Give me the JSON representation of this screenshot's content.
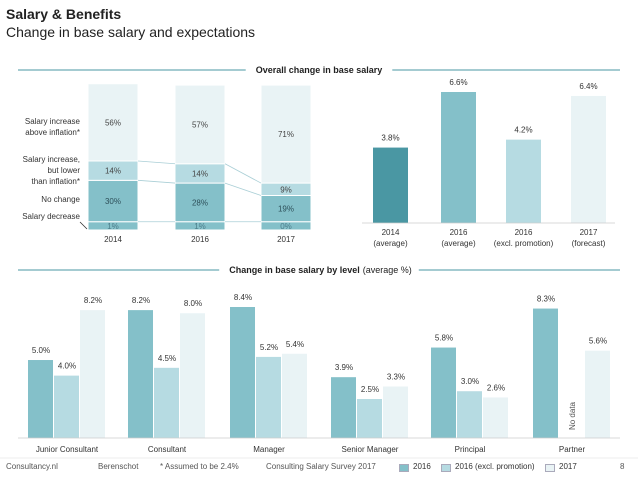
{
  "header": {
    "title": "Salary & Benefits",
    "subtitle": "Change in base salary and expectations"
  },
  "footer": {
    "source": "Consultancy.nl",
    "partner": "Berenschot",
    "note": "* Assumed to be 2.4%",
    "survey": "Consulting Salary Survey 2017",
    "page": "8"
  },
  "legend": [
    {
      "name": "2016",
      "color": "#84c0c9"
    },
    {
      "name": "2016 (excl. promotion)",
      "color": "#b6dbe2"
    },
    {
      "name": "2017",
      "color": "#e9f3f5"
    }
  ],
  "chart_data": [
    {
      "type": "bar",
      "stacked": true,
      "title": "Overall change in base salary",
      "categories": [
        "2014",
        "2016",
        "2017"
      ],
      "series": [
        {
          "name": "Salary decrease",
          "values": [
            1,
            1,
            0
          ],
          "labels": [
            "1%",
            "1%",
            "0%"
          ],
          "color": "#84c0c9"
        },
        {
          "name": "No change",
          "values": [
            30,
            28,
            19
          ],
          "labels": [
            "30%",
            "28%",
            "19%"
          ],
          "color": "#84c0c9"
        },
        {
          "name": "Salary increase, but lower than inflation*",
          "values": [
            14,
            14,
            9
          ],
          "labels": [
            "14%",
            "14%",
            "9%"
          ],
          "color": "#b6dbe2"
        },
        {
          "name": "Salary increase above inflation*",
          "values": [
            56,
            57,
            71
          ],
          "labels": [
            "56%",
            "57%",
            "71%"
          ],
          "color": "#e9f3f5"
        }
      ]
    },
    {
      "type": "bar",
      "categories": [
        "2014 (average)",
        "2016 (average)",
        "2016 (excl. promotion)",
        "2017 (forecast)"
      ],
      "values": [
        3.8,
        6.6,
        4.2,
        6.4
      ],
      "labels": [
        "3.8%",
        "6.6%",
        "4.2%",
        "6.4%"
      ],
      "colors": [
        "#4a97a3",
        "#84c0c9",
        "#b6dbe2",
        "#e9f3f5"
      ]
    },
    {
      "type": "bar",
      "title": "Change in base salary by level",
      "title_suffix": "(average %)",
      "categories": [
        "Junior Consultant",
        "Consultant",
        "Manager",
        "Senior Manager",
        "Principal",
        "Partner"
      ],
      "series": [
        {
          "name": "2016",
          "values": [
            5.0,
            8.2,
            8.4,
            3.9,
            5.8,
            8.3
          ],
          "labels": [
            "5.0%",
            "8.2%",
            "8.4%",
            "3.9%",
            "5.8%",
            "8.3%"
          ]
        },
        {
          "name": "2016 (excl. promotion)",
          "values": [
            4.0,
            4.5,
            5.2,
            2.5,
            3.0,
            null
          ],
          "labels": [
            "4.0%",
            "4.5%",
            "5.2%",
            "2.5%",
            "3.0%",
            ""
          ]
        },
        {
          "name": "2017",
          "values": [
            8.2,
            8.0,
            5.4,
            3.3,
            2.6,
            5.6
          ],
          "labels": [
            "8.2%",
            "8.0%",
            "5.4%",
            "3.3%",
            "2.6%",
            "5.6%"
          ]
        }
      ],
      "missing_label": "No data"
    }
  ]
}
